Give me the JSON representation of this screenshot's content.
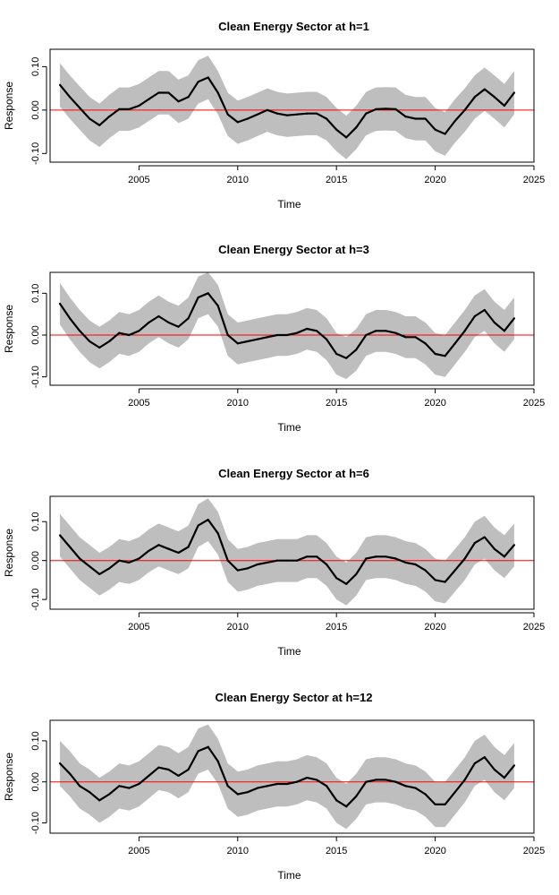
{
  "chart_data": [
    {
      "type": "line",
      "title": "Clean Energy Sector  at h=1",
      "xlabel": "Time",
      "ylabel": "Response",
      "xlim": [
        2000.5,
        2025
      ],
      "ylim": [
        -0.12,
        0.14
      ],
      "xticks": [
        "2005",
        "2010",
        "2015",
        "2020",
        "2025"
      ],
      "yticks": [
        "-0.10",
        "0.00",
        "0.10"
      ],
      "reference_line": 0,
      "colors": {
        "line": "#000000",
        "band": "#bebebe",
        "zero_line": "#ff0000"
      },
      "x": [
        2001.0,
        2001.5,
        2002.0,
        2002.5,
        2003.0,
        2003.5,
        2004.0,
        2004.5,
        2005.0,
        2005.5,
        2006.0,
        2006.5,
        2007.0,
        2007.5,
        2008.0,
        2008.5,
        2009.0,
        2009.5,
        2010.0,
        2010.5,
        2011.0,
        2011.5,
        2012.0,
        2012.5,
        2013.0,
        2013.5,
        2014.0,
        2014.5,
        2015.0,
        2015.5,
        2016.0,
        2016.5,
        2017.0,
        2017.5,
        2018.0,
        2018.5,
        2019.0,
        2019.5,
        2020.0,
        2020.5,
        2021.0,
        2021.5,
        2022.0,
        2022.5,
        2023.0,
        2023.5,
        2024.0
      ],
      "series": [
        {
          "name": "response",
          "values": [
            0.058,
            0.03,
            0.005,
            -0.02,
            -0.035,
            -0.015,
            0.002,
            0.002,
            0.01,
            0.025,
            0.04,
            0.04,
            0.02,
            0.03,
            0.065,
            0.075,
            0.04,
            -0.01,
            -0.028,
            -0.02,
            -0.01,
            0.0,
            -0.008,
            -0.012,
            -0.01,
            -0.008,
            -0.008,
            -0.02,
            -0.045,
            -0.063,
            -0.04,
            -0.008,
            0.002,
            0.003,
            0.002,
            -0.015,
            -0.02,
            -0.02,
            -0.045,
            -0.055,
            -0.025,
            0.0,
            0.03,
            0.048,
            0.03,
            0.01,
            0.04
          ]
        },
        {
          "name": "upper",
          "values": [
            0.108,
            0.08,
            0.055,
            0.03,
            0.015,
            0.035,
            0.052,
            0.052,
            0.06,
            0.075,
            0.09,
            0.09,
            0.07,
            0.08,
            0.115,
            0.125,
            0.09,
            0.04,
            0.022,
            0.03,
            0.04,
            0.05,
            0.042,
            0.038,
            0.04,
            0.042,
            0.042,
            0.03,
            0.005,
            -0.013,
            0.01,
            0.042,
            0.052,
            0.053,
            0.052,
            0.035,
            0.03,
            0.03,
            0.005,
            -0.005,
            0.025,
            0.05,
            0.08,
            0.098,
            0.08,
            0.06,
            0.09
          ]
        },
        {
          "name": "lower",
          "values": [
            0.008,
            -0.02,
            -0.045,
            -0.07,
            -0.085,
            -0.065,
            -0.048,
            -0.048,
            -0.04,
            -0.025,
            -0.01,
            -0.01,
            -0.03,
            -0.02,
            0.015,
            0.025,
            -0.01,
            -0.06,
            -0.078,
            -0.07,
            -0.06,
            -0.05,
            -0.058,
            -0.062,
            -0.06,
            -0.058,
            -0.058,
            -0.07,
            -0.095,
            -0.113,
            -0.09,
            -0.058,
            -0.048,
            -0.047,
            -0.048,
            -0.065,
            -0.07,
            -0.07,
            -0.095,
            -0.105,
            -0.075,
            -0.05,
            -0.02,
            -0.002,
            -0.02,
            -0.04,
            -0.01
          ]
        }
      ]
    },
    {
      "type": "line",
      "title": "Clean Energy Sector  at h=3",
      "xlabel": "Time",
      "ylabel": "Response",
      "xlim": [
        2000.5,
        2025
      ],
      "ylim": [
        -0.12,
        0.15
      ],
      "xticks": [
        "2005",
        "2010",
        "2015",
        "2020",
        "2025"
      ],
      "yticks": [
        "-0.10",
        "0.00",
        "0.10"
      ],
      "reference_line": 0,
      "colors": {
        "line": "#000000",
        "band": "#bebebe",
        "zero_line": "#ff0000"
      },
      "x": [
        2001.0,
        2001.5,
        2002.0,
        2002.5,
        2003.0,
        2003.5,
        2004.0,
        2004.5,
        2005.0,
        2005.5,
        2006.0,
        2006.5,
        2007.0,
        2007.5,
        2008.0,
        2008.5,
        2009.0,
        2009.5,
        2010.0,
        2010.5,
        2011.0,
        2011.5,
        2012.0,
        2012.5,
        2013.0,
        2013.5,
        2014.0,
        2014.5,
        2015.0,
        2015.5,
        2016.0,
        2016.5,
        2017.0,
        2017.5,
        2018.0,
        2018.5,
        2019.0,
        2019.5,
        2020.0,
        2020.5,
        2021.0,
        2021.5,
        2022.0,
        2022.5,
        2023.0,
        2023.5,
        2024.0
      ],
      "series": [
        {
          "name": "response",
          "values": [
            0.075,
            0.04,
            0.01,
            -0.015,
            -0.03,
            -0.015,
            0.005,
            0.0,
            0.01,
            0.03,
            0.045,
            0.03,
            0.02,
            0.04,
            0.09,
            0.1,
            0.07,
            0.0,
            -0.02,
            -0.015,
            -0.01,
            -0.005,
            0.0,
            0.0,
            0.005,
            0.015,
            0.01,
            -0.01,
            -0.045,
            -0.055,
            -0.035,
            0.0,
            0.01,
            0.01,
            0.005,
            -0.005,
            -0.005,
            -0.02,
            -0.045,
            -0.05,
            -0.02,
            0.01,
            0.045,
            0.06,
            0.03,
            0.01,
            0.04
          ]
        },
        {
          "name": "upper",
          "values": [
            0.125,
            0.09,
            0.06,
            0.035,
            0.02,
            0.035,
            0.055,
            0.05,
            0.06,
            0.08,
            0.095,
            0.08,
            0.07,
            0.09,
            0.14,
            0.15,
            0.12,
            0.05,
            0.03,
            0.035,
            0.04,
            0.045,
            0.05,
            0.05,
            0.055,
            0.065,
            0.06,
            0.04,
            0.005,
            -0.005,
            0.015,
            0.05,
            0.06,
            0.06,
            0.055,
            0.045,
            0.045,
            0.03,
            0.005,
            0.0,
            0.03,
            0.06,
            0.095,
            0.11,
            0.08,
            0.06,
            0.09
          ]
        },
        {
          "name": "lower",
          "values": [
            0.025,
            -0.01,
            -0.04,
            -0.065,
            -0.08,
            -0.065,
            -0.045,
            -0.05,
            -0.04,
            -0.02,
            -0.005,
            -0.02,
            -0.03,
            -0.01,
            0.04,
            0.05,
            0.02,
            -0.05,
            -0.07,
            -0.065,
            -0.06,
            -0.055,
            -0.05,
            -0.05,
            -0.045,
            -0.035,
            -0.04,
            -0.06,
            -0.095,
            -0.105,
            -0.085,
            -0.05,
            -0.04,
            -0.04,
            -0.045,
            -0.055,
            -0.055,
            -0.07,
            -0.095,
            -0.1,
            -0.07,
            -0.04,
            -0.005,
            0.01,
            -0.02,
            -0.04,
            -0.01
          ]
        }
      ]
    },
    {
      "type": "line",
      "title": "Clean Energy Sector  at h=6",
      "xlabel": "Time",
      "ylabel": "Response",
      "xlim": [
        2000.5,
        2025
      ],
      "ylim": [
        -0.125,
        0.165
      ],
      "xticks": [
        "2005",
        "2010",
        "2015",
        "2020",
        "2025"
      ],
      "yticks": [
        "-0.10",
        "0.00",
        "0.10"
      ],
      "reference_line": 0,
      "colors": {
        "line": "#000000",
        "band": "#bebebe",
        "zero_line": "#ff0000"
      },
      "x": [
        2001.0,
        2001.5,
        2002.0,
        2002.5,
        2003.0,
        2003.5,
        2004.0,
        2004.5,
        2005.0,
        2005.5,
        2006.0,
        2006.5,
        2007.0,
        2007.5,
        2008.0,
        2008.5,
        2009.0,
        2009.5,
        2010.0,
        2010.5,
        2011.0,
        2011.5,
        2012.0,
        2012.5,
        2013.0,
        2013.5,
        2014.0,
        2014.5,
        2015.0,
        2015.5,
        2016.0,
        2016.5,
        2017.0,
        2017.5,
        2018.0,
        2018.5,
        2019.0,
        2019.5,
        2020.0,
        2020.5,
        2021.0,
        2021.5,
        2022.0,
        2022.5,
        2023.0,
        2023.5,
        2024.0
      ],
      "series": [
        {
          "name": "response",
          "values": [
            0.065,
            0.035,
            0.005,
            -0.015,
            -0.035,
            -0.02,
            0.0,
            -0.005,
            0.005,
            0.025,
            0.04,
            0.03,
            0.02,
            0.035,
            0.09,
            0.105,
            0.07,
            0.0,
            -0.025,
            -0.02,
            -0.01,
            -0.005,
            0.0,
            0.0,
            0.0,
            0.01,
            0.01,
            -0.01,
            -0.045,
            -0.06,
            -0.035,
            0.005,
            0.01,
            0.01,
            0.005,
            -0.005,
            -0.01,
            -0.025,
            -0.05,
            -0.055,
            -0.025,
            0.005,
            0.045,
            0.06,
            0.03,
            0.01,
            0.04
          ]
        },
        {
          "name": "upper",
          "values": [
            0.12,
            0.09,
            0.06,
            0.04,
            0.02,
            0.035,
            0.055,
            0.05,
            0.06,
            0.08,
            0.095,
            0.085,
            0.075,
            0.09,
            0.145,
            0.16,
            0.125,
            0.055,
            0.03,
            0.035,
            0.045,
            0.05,
            0.055,
            0.055,
            0.055,
            0.065,
            0.065,
            0.045,
            0.01,
            -0.005,
            0.02,
            0.06,
            0.065,
            0.065,
            0.06,
            0.05,
            0.045,
            0.03,
            0.005,
            0.0,
            0.03,
            0.06,
            0.1,
            0.115,
            0.085,
            0.065,
            0.095
          ]
        },
        {
          "name": "lower",
          "values": [
            0.01,
            -0.02,
            -0.05,
            -0.07,
            -0.09,
            -0.075,
            -0.055,
            -0.06,
            -0.05,
            -0.03,
            -0.015,
            -0.025,
            -0.035,
            -0.02,
            0.035,
            0.05,
            0.015,
            -0.055,
            -0.08,
            -0.075,
            -0.065,
            -0.06,
            -0.055,
            -0.055,
            -0.055,
            -0.045,
            -0.045,
            -0.065,
            -0.1,
            -0.115,
            -0.09,
            -0.05,
            -0.045,
            -0.045,
            -0.05,
            -0.06,
            -0.065,
            -0.08,
            -0.105,
            -0.11,
            -0.08,
            -0.05,
            -0.01,
            0.005,
            -0.025,
            -0.045,
            -0.015
          ]
        }
      ]
    },
    {
      "type": "line",
      "title": "Clean Energy Sector  at h=12",
      "xlabel": "Time",
      "ylabel": "Response",
      "xlim": [
        2000.5,
        2025
      ],
      "ylim": [
        -0.125,
        0.15
      ],
      "xticks": [
        "2005",
        "2010",
        "2015",
        "2020",
        "2025"
      ],
      "yticks": [
        "-0.10",
        "0.00",
        "0.10"
      ],
      "reference_line": 0,
      "colors": {
        "line": "#000000",
        "band": "#bebebe",
        "zero_line": "#ff0000"
      },
      "x": [
        2001.0,
        2001.5,
        2002.0,
        2002.5,
        2003.0,
        2003.5,
        2004.0,
        2004.5,
        2005.0,
        2005.5,
        2006.0,
        2006.5,
        2007.0,
        2007.5,
        2008.0,
        2008.5,
        2009.0,
        2009.5,
        2010.0,
        2010.5,
        2011.0,
        2011.5,
        2012.0,
        2012.5,
        2013.0,
        2013.5,
        2014.0,
        2014.5,
        2015.0,
        2015.5,
        2016.0,
        2016.5,
        2017.0,
        2017.5,
        2018.0,
        2018.5,
        2019.0,
        2019.5,
        2020.0,
        2020.5,
        2021.0,
        2021.5,
        2022.0,
        2022.5,
        2023.0,
        2023.5,
        2024.0
      ],
      "series": [
        {
          "name": "response",
          "values": [
            0.045,
            0.02,
            -0.01,
            -0.025,
            -0.045,
            -0.03,
            -0.01,
            -0.015,
            -0.005,
            0.015,
            0.035,
            0.03,
            0.015,
            0.03,
            0.075,
            0.085,
            0.05,
            -0.01,
            -0.03,
            -0.025,
            -0.015,
            -0.01,
            -0.005,
            -0.005,
            0.0,
            0.01,
            0.005,
            -0.01,
            -0.045,
            -0.06,
            -0.035,
            0.0,
            0.005,
            0.005,
            0.0,
            -0.01,
            -0.015,
            -0.03,
            -0.055,
            -0.055,
            -0.025,
            0.005,
            0.045,
            0.06,
            0.03,
            0.01,
            0.04
          ]
        },
        {
          "name": "upper",
          "values": [
            0.1,
            0.075,
            0.045,
            0.03,
            0.01,
            0.025,
            0.045,
            0.04,
            0.05,
            0.07,
            0.09,
            0.085,
            0.07,
            0.085,
            0.13,
            0.14,
            0.105,
            0.045,
            0.025,
            0.03,
            0.04,
            0.045,
            0.05,
            0.05,
            0.055,
            0.065,
            0.06,
            0.045,
            0.01,
            -0.005,
            0.02,
            0.055,
            0.06,
            0.06,
            0.055,
            0.045,
            0.04,
            0.025,
            0.0,
            0.0,
            0.03,
            0.06,
            0.1,
            0.115,
            0.085,
            0.065,
            0.095
          ]
        },
        {
          "name": "lower",
          "values": [
            -0.01,
            -0.035,
            -0.065,
            -0.08,
            -0.1,
            -0.085,
            -0.065,
            -0.07,
            -0.06,
            -0.04,
            -0.02,
            -0.025,
            -0.04,
            -0.025,
            0.02,
            0.03,
            -0.005,
            -0.065,
            -0.085,
            -0.08,
            -0.07,
            -0.065,
            -0.06,
            -0.06,
            -0.055,
            -0.045,
            -0.05,
            -0.065,
            -0.1,
            -0.115,
            -0.09,
            -0.055,
            -0.05,
            -0.05,
            -0.055,
            -0.065,
            -0.07,
            -0.085,
            -0.11,
            -0.11,
            -0.08,
            -0.05,
            -0.01,
            0.005,
            -0.025,
            -0.045,
            -0.015
          ]
        }
      ]
    }
  ]
}
